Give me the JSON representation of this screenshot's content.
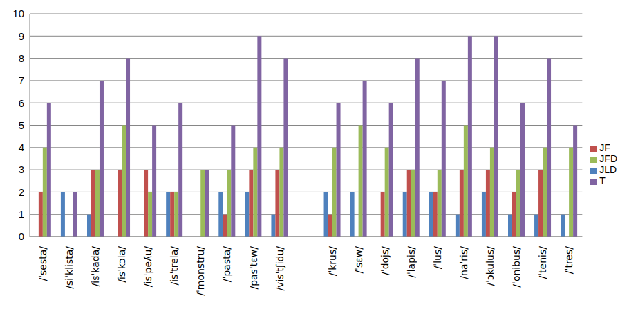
{
  "chart_data": {
    "type": "bar",
    "categories": [
      "/ˈsesta/",
      "/siˈklista/",
      "/isˈkada/",
      "/isˈkɔla/",
      "/isˈpeʎu/",
      "/isˈtrela/",
      "/ˈmonstru/",
      "/ˈpasta/",
      "/pasˈtɛw/",
      "/visˈtʃidu/",
      null,
      "/ˈkrus/",
      "/ˈsɛw/",
      "/ˈdojs/",
      "/ˈlapis/",
      "/ˈlus/",
      "/naˈris/",
      "/ˈɔkulus/",
      "/ˈonibus/",
      "/ˈtenis/",
      "/ˈtres/"
    ],
    "series": [
      {
        "name": "JLD",
        "color": "#4f81bd",
        "values": [
          0,
          2,
          1,
          0,
          0,
          2,
          0,
          2,
          2,
          1,
          null,
          2,
          2,
          0,
          2,
          2,
          1,
          2,
          1,
          1,
          1
        ]
      },
      {
        "name": "JF",
        "color": "#c0504d",
        "values": [
          2,
          0,
          3,
          3,
          3,
          2,
          0,
          1,
          3,
          3,
          null,
          1,
          0,
          2,
          3,
          2,
          3,
          3,
          2,
          3,
          0
        ]
      },
      {
        "name": "JFD",
        "color": "#9bbb59",
        "values": [
          4,
          0,
          3,
          5,
          2,
          2,
          3,
          3,
          4,
          4,
          null,
          4,
          5,
          4,
          3,
          3,
          5,
          4,
          3,
          4,
          4
        ]
      },
      {
        "name": "T",
        "color": "#8064a2",
        "values": [
          6,
          2,
          7,
          8,
          5,
          6,
          3,
          5,
          9,
          8,
          null,
          6,
          7,
          6,
          8,
          7,
          9,
          9,
          6,
          8,
          5
        ]
      }
    ],
    "ylim": [
      0,
      10
    ],
    "yticks": [
      0,
      1,
      2,
      3,
      4,
      5,
      6,
      7,
      8,
      9,
      10
    ],
    "grid": true,
    "legend": "right"
  }
}
